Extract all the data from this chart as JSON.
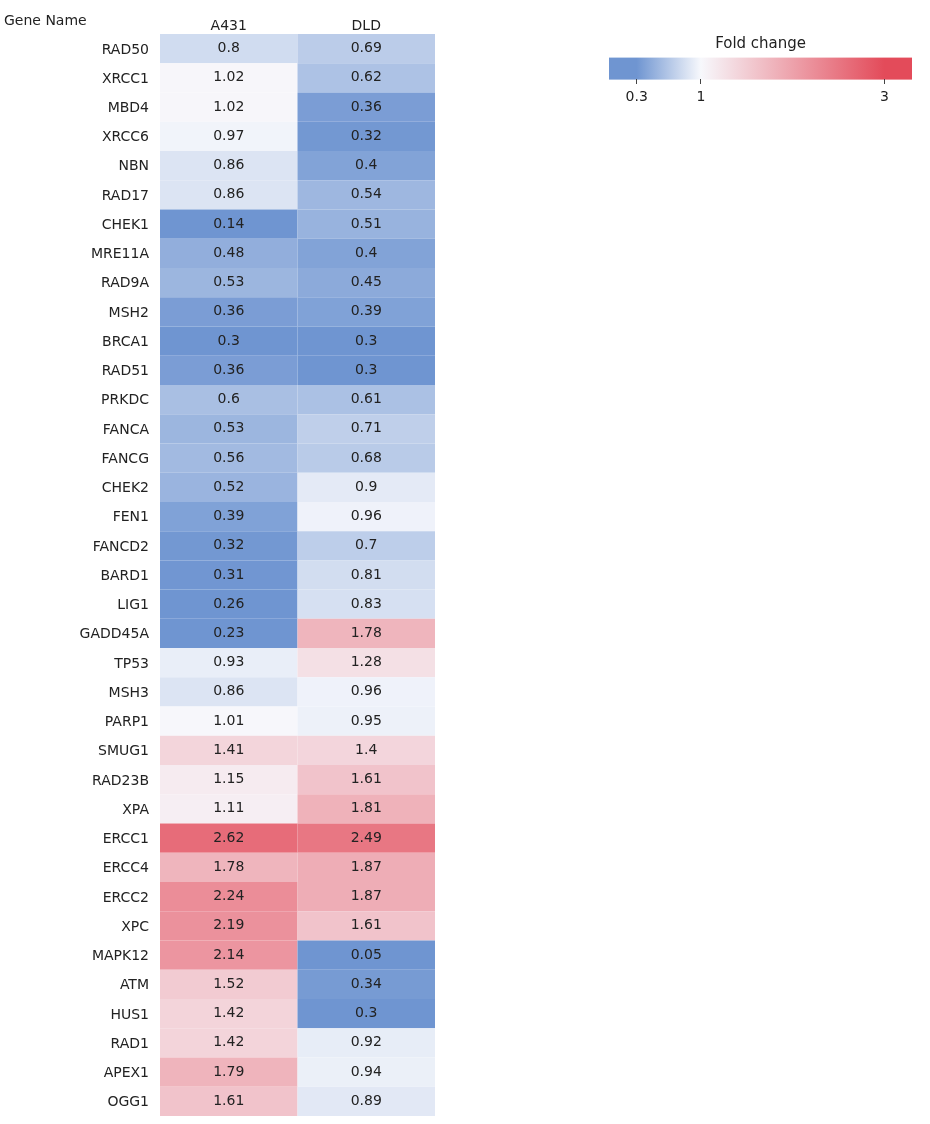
{
  "chart_data": {
    "type": "heatmap",
    "ylabel": "Gene Name",
    "clabel": "Fold change",
    "categories": [
      "A431",
      "DLD"
    ],
    "y_categories": [
      "RAD50",
      "XRCC1",
      "MBD4",
      "XRCC6",
      "NBN",
      "RAD17",
      "CHEK1",
      "MRE11A",
      "RAD9A",
      "MSH2",
      "BRCA1",
      "RAD51",
      "PRKDC",
      "FANCA",
      "FANCG",
      "CHEK2",
      "FEN1",
      "FANCD2",
      "BARD1",
      "LIG1",
      "GADD45A",
      "TP53",
      "MSH3",
      "PARP1",
      "SMUG1",
      "RAD23B",
      "XPA",
      "ERCC1",
      "ERCC4",
      "ERCC2",
      "XPC",
      "MAPK12",
      "ATM",
      "HUS1",
      "RAD1",
      "APEX1",
      "OGG1"
    ],
    "cells": [
      [
        0.8,
        0.69
      ],
      [
        1.02,
        0.62
      ],
      [
        1.02,
        0.36
      ],
      [
        0.97,
        0.32
      ],
      [
        0.86,
        0.4
      ],
      [
        0.86,
        0.54
      ],
      [
        0.14,
        0.51
      ],
      [
        0.48,
        0.4
      ],
      [
        0.53,
        0.45
      ],
      [
        0.36,
        0.39
      ],
      [
        0.3,
        0.3
      ],
      [
        0.36,
        0.3
      ],
      [
        0.6,
        0.61
      ],
      [
        0.53,
        0.71
      ],
      [
        0.56,
        0.68
      ],
      [
        0.52,
        0.9
      ],
      [
        0.39,
        0.96
      ],
      [
        0.32,
        0.7
      ],
      [
        0.31,
        0.81
      ],
      [
        0.26,
        0.83
      ],
      [
        0.23,
        1.78
      ],
      [
        0.93,
        1.28
      ],
      [
        0.86,
        0.96
      ],
      [
        1.01,
        0.95
      ],
      [
        1.41,
        1.4
      ],
      [
        1.15,
        1.61
      ],
      [
        1.11,
        1.81
      ],
      [
        2.62,
        2.49
      ],
      [
        1.78,
        1.87
      ],
      [
        2.24,
        1.87
      ],
      [
        2.19,
        1.61
      ],
      [
        2.14,
        0.05
      ],
      [
        1.52,
        0.34
      ],
      [
        1.42,
        0.3
      ],
      [
        1.42,
        0.92
      ],
      [
        1.79,
        0.94
      ],
      [
        1.61,
        0.89
      ]
    ],
    "clim": [
      0,
      3.3
    ],
    "cticks": [
      0.3,
      1,
      3
    ],
    "colors": [
      "#6f95d1",
      "#f7f8fc",
      "#e34b5a"
    ],
    "data_labels": true
  }
}
